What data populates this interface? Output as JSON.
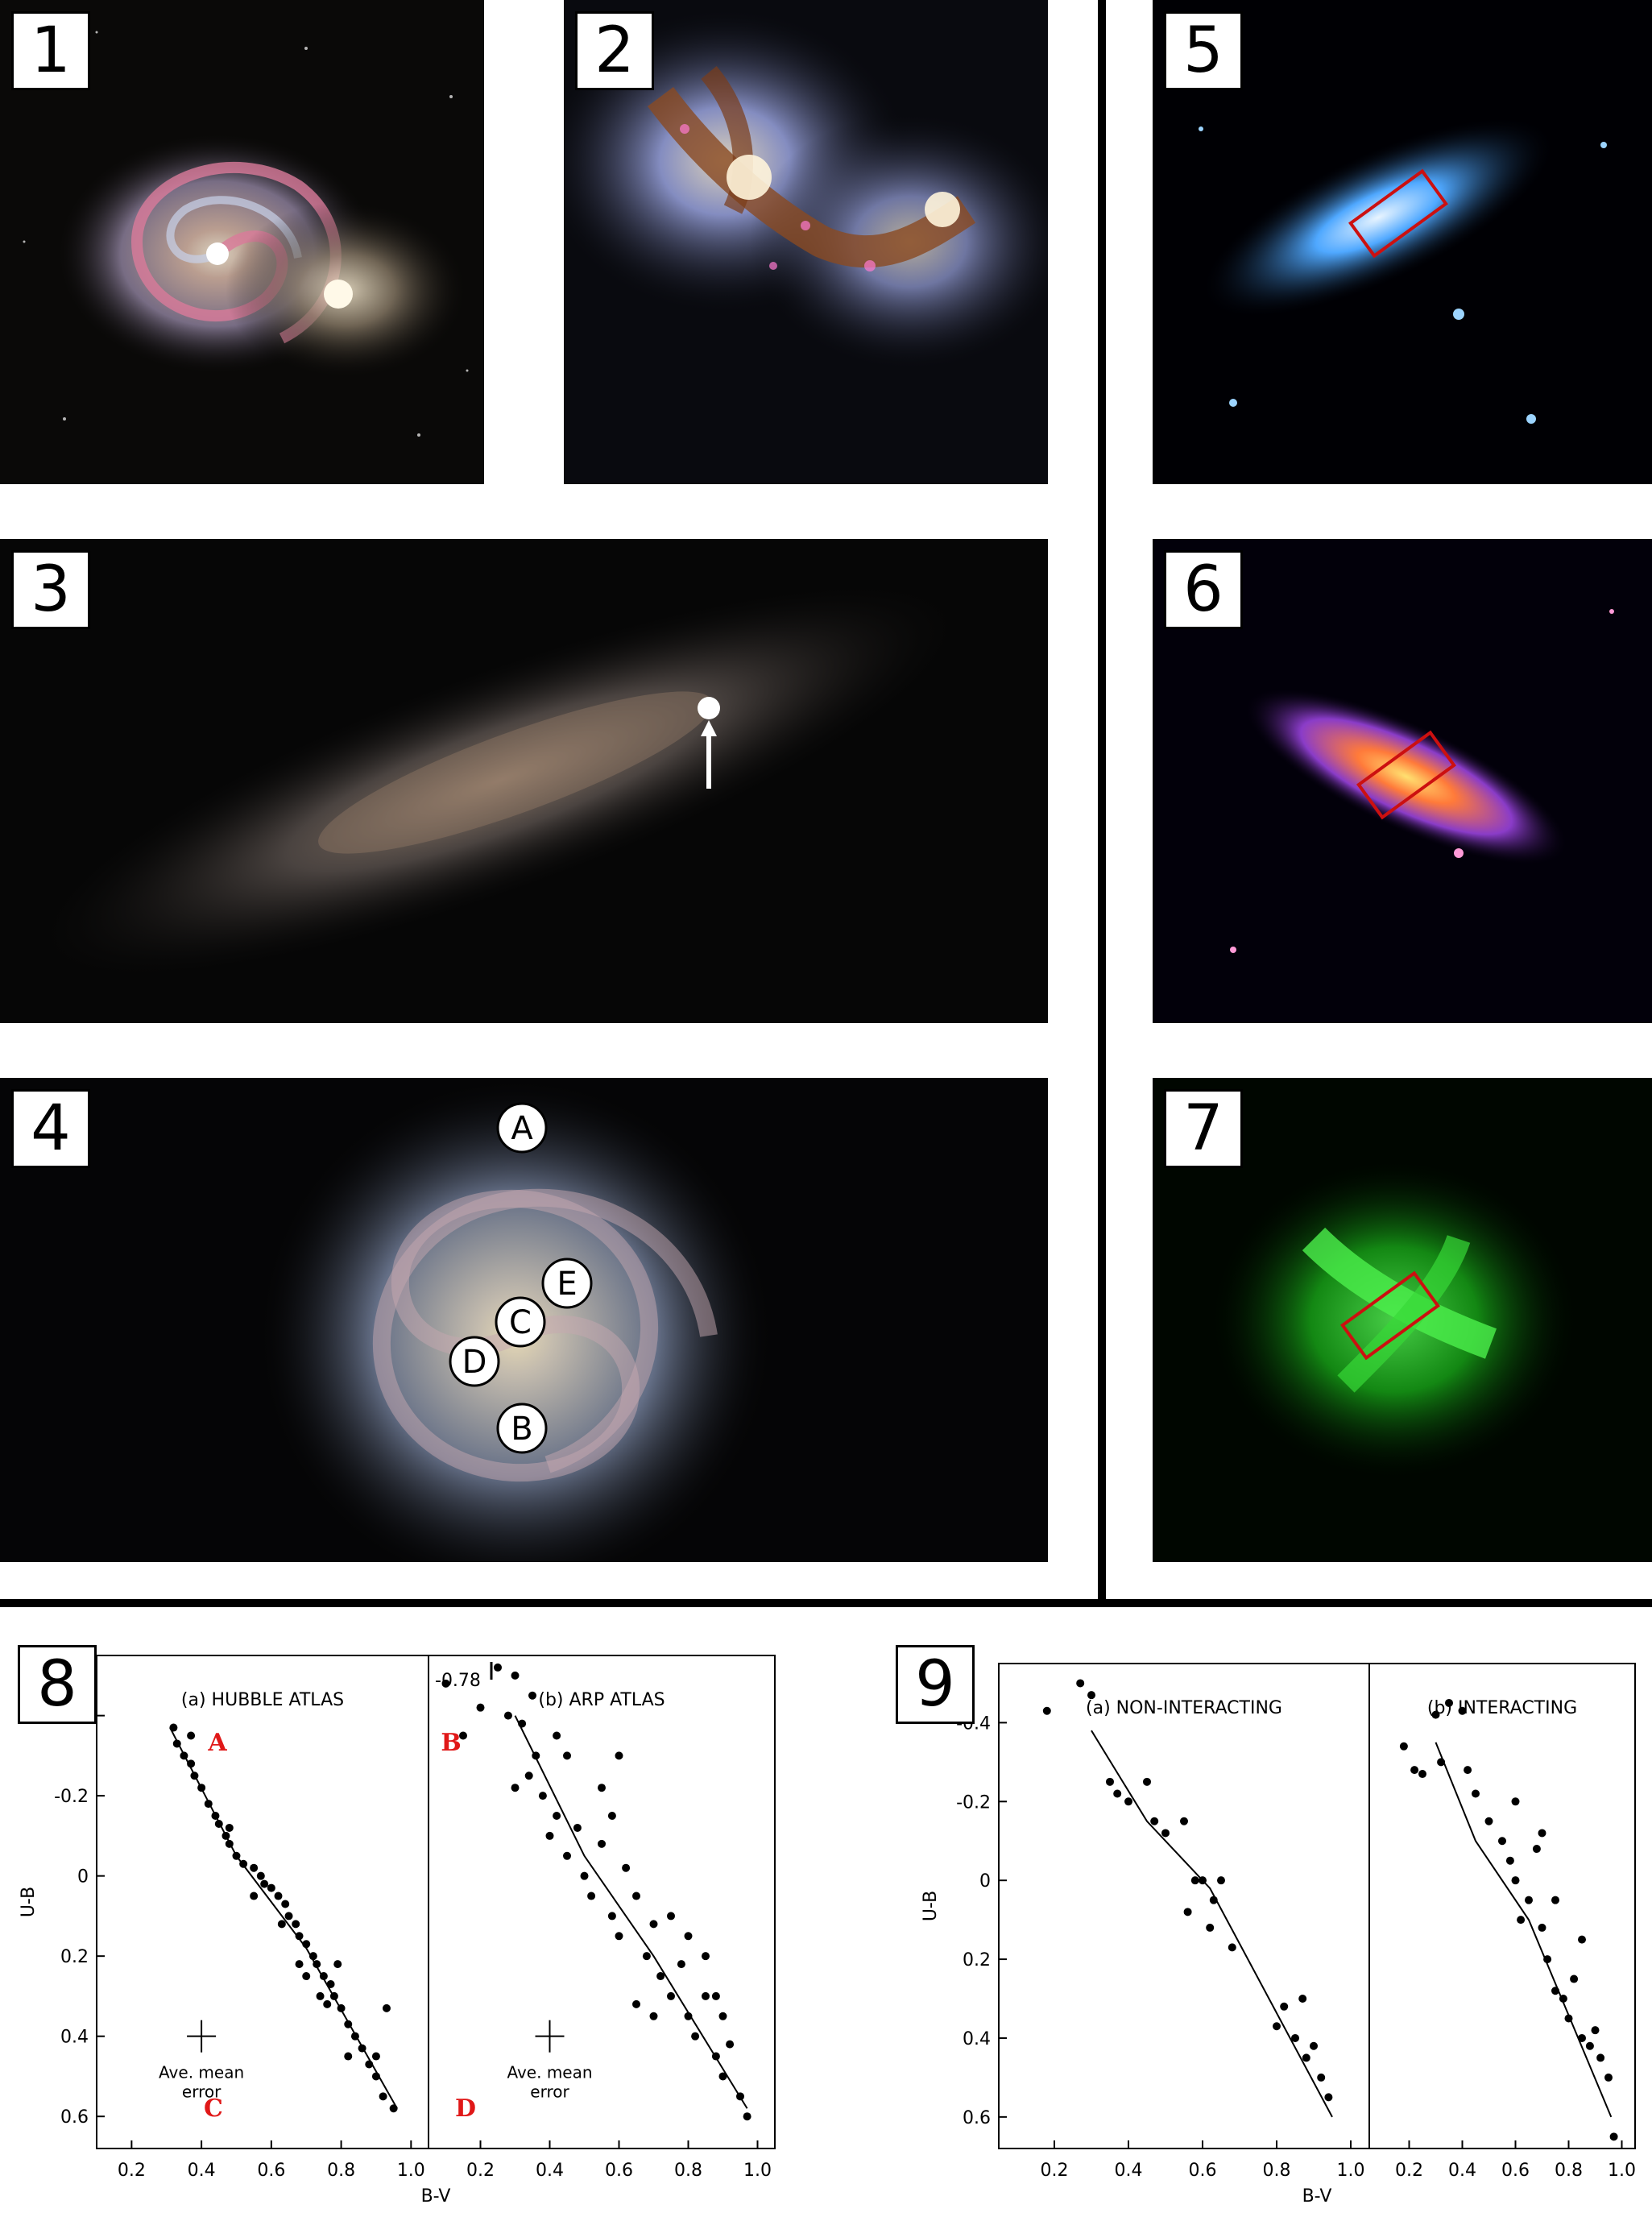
{
  "panels": [
    {
      "number": "1"
    },
    {
      "number": "2"
    },
    {
      "number": "3"
    },
    {
      "number": "4",
      "markers": [
        "A",
        "E",
        "C",
        "D",
        "B"
      ]
    },
    {
      "number": "5"
    },
    {
      "number": "6"
    },
    {
      "number": "7"
    },
    {
      "number": "8"
    },
    {
      "number": "9"
    }
  ],
  "chart_data": [
    {
      "type": "scatter",
      "panel": "8",
      "subplots": [
        {
          "title": "(a) HUBBLE ATLAS",
          "corner_labels": [
            "A",
            "B",
            "C",
            "D"
          ],
          "annotation": [
            "Ave. mean",
            "error"
          ],
          "points": [
            [
              0.32,
              -0.37
            ],
            [
              0.33,
              -0.33
            ],
            [
              0.35,
              -0.3
            ],
            [
              0.37,
              -0.28
            ],
            [
              0.38,
              -0.25
            ],
            [
              0.4,
              -0.22
            ],
            [
              0.42,
              -0.18
            ],
            [
              0.44,
              -0.15
            ],
            [
              0.45,
              -0.13
            ],
            [
              0.47,
              -0.1
            ],
            [
              0.48,
              -0.08
            ],
            [
              0.5,
              -0.05
            ],
            [
              0.52,
              -0.03
            ],
            [
              0.55,
              -0.02
            ],
            [
              0.57,
              0
            ],
            [
              0.58,
              0.02
            ],
            [
              0.6,
              0.03
            ],
            [
              0.62,
              0.05
            ],
            [
              0.64,
              0.07
            ],
            [
              0.65,
              0.1
            ],
            [
              0.67,
              0.12
            ],
            [
              0.68,
              0.15
            ],
            [
              0.7,
              0.17
            ],
            [
              0.72,
              0.2
            ],
            [
              0.73,
              0.22
            ],
            [
              0.75,
              0.25
            ],
            [
              0.77,
              0.27
            ],
            [
              0.78,
              0.3
            ],
            [
              0.8,
              0.33
            ],
            [
              0.82,
              0.37
            ],
            [
              0.84,
              0.4
            ],
            [
              0.86,
              0.43
            ],
            [
              0.88,
              0.47
            ],
            [
              0.9,
              0.5
            ],
            [
              0.92,
              0.55
            ],
            [
              0.95,
              0.58
            ],
            [
              0.37,
              -0.35
            ],
            [
              0.48,
              -0.12
            ],
            [
              0.55,
              0.05
            ],
            [
              0.63,
              0.12
            ],
            [
              0.7,
              0.25
            ],
            [
              0.74,
              0.3
            ],
            [
              0.82,
              0.45
            ],
            [
              0.9,
              0.45
            ],
            [
              0.93,
              0.33
            ],
            [
              0.68,
              0.22
            ],
            [
              0.76,
              0.32
            ],
            [
              0.79,
              0.22
            ]
          ],
          "curve": [
            [
              0.31,
              -0.37
            ],
            [
              0.5,
              -0.05
            ],
            [
              0.7,
              0.18
            ],
            [
              0.96,
              0.58
            ]
          ],
          "xlim": [
            0.1,
            1.05
          ],
          "ylim": [
            -0.55,
            0.68
          ]
        },
        {
          "title": "(b) ARP ATLAS",
          "top_label": "-0.78",
          "annotation": [
            "Ave. mean",
            "error"
          ],
          "points": [
            [
              0.1,
              -0.48
            ],
            [
              0.15,
              -0.35
            ],
            [
              0.2,
              -0.42
            ],
            [
              0.25,
              -0.52
            ],
            [
              0.28,
              -0.4
            ],
            [
              0.3,
              -0.5
            ],
            [
              0.32,
              -0.38
            ],
            [
              0.34,
              -0.25
            ],
            [
              0.36,
              -0.3
            ],
            [
              0.38,
              -0.2
            ],
            [
              0.4,
              -0.1
            ],
            [
              0.42,
              -0.15
            ],
            [
              0.45,
              -0.05
            ],
            [
              0.48,
              -0.12
            ],
            [
              0.5,
              0
            ],
            [
              0.52,
              0.05
            ],
            [
              0.55,
              -0.08
            ],
            [
              0.58,
              0.1
            ],
            [
              0.6,
              0.15
            ],
            [
              0.62,
              -0.02
            ],
            [
              0.65,
              0.05
            ],
            [
              0.68,
              0.2
            ],
            [
              0.7,
              0.12
            ],
            [
              0.72,
              0.25
            ],
            [
              0.75,
              0.3
            ],
            [
              0.78,
              0.22
            ],
            [
              0.8,
              0.35
            ],
            [
              0.82,
              0.4
            ],
            [
              0.85,
              0.3
            ],
            [
              0.88,
              0.45
            ],
            [
              0.9,
              0.5
            ],
            [
              0.92,
              0.42
            ],
            [
              0.95,
              0.55
            ],
            [
              0.97,
              0.6
            ],
            [
              0.35,
              -0.45
            ],
            [
              0.45,
              -0.3
            ],
            [
              0.55,
              -0.22
            ],
            [
              0.6,
              -0.3
            ],
            [
              0.65,
              0.32
            ],
            [
              0.7,
              0.35
            ],
            [
              0.8,
              0.15
            ],
            [
              0.85,
              0.2
            ],
            [
              0.9,
              0.35
            ],
            [
              0.3,
              -0.22
            ],
            [
              0.42,
              -0.35
            ],
            [
              0.58,
              -0.15
            ],
            [
              0.75,
              0.1
            ],
            [
              0.88,
              0.3
            ]
          ],
          "curve": [
            [
              0.3,
              -0.4
            ],
            [
              0.5,
              -0.05
            ],
            [
              0.7,
              0.2
            ],
            [
              0.97,
              0.58
            ]
          ],
          "xlim": [
            0.05,
            1.05
          ],
          "ylim": [
            -0.55,
            0.68
          ]
        }
      ],
      "xlabel": "B-V",
      "ylabel": "U-B",
      "xticks": [
        "0.2",
        "0.4",
        "0.6",
        "0.8",
        "1.0"
      ],
      "yticks": [
        "-0.4",
        "-0.2",
        "0",
        "0.2",
        "0.4",
        "0.6"
      ]
    },
    {
      "type": "scatter",
      "panel": "9",
      "subplots": [
        {
          "title": "(a) NON-INTERACTING",
          "points": [
            [
              0.18,
              -0.43
            ],
            [
              0.27,
              -0.5
            ],
            [
              0.3,
              -0.47
            ],
            [
              0.35,
              -0.25
            ],
            [
              0.37,
              -0.22
            ],
            [
              0.4,
              -0.2
            ],
            [
              0.45,
              -0.25
            ],
            [
              0.47,
              -0.15
            ],
            [
              0.5,
              -0.12
            ],
            [
              0.55,
              -0.15
            ],
            [
              0.56,
              0.08
            ],
            [
              0.58,
              0
            ],
            [
              0.6,
              0
            ],
            [
              0.62,
              0.12
            ],
            [
              0.63,
              0.05
            ],
            [
              0.65,
              0
            ],
            [
              0.68,
              0.17
            ],
            [
              0.8,
              0.37
            ],
            [
              0.82,
              0.32
            ],
            [
              0.85,
              0.4
            ],
            [
              0.87,
              0.3
            ],
            [
              0.88,
              0.45
            ],
            [
              0.9,
              0.42
            ],
            [
              0.92,
              0.5
            ],
            [
              0.94,
              0.55
            ]
          ],
          "curve": [
            [
              0.3,
              -0.38
            ],
            [
              0.45,
              -0.15
            ],
            [
              0.62,
              0.02
            ],
            [
              0.95,
              0.6
            ]
          ],
          "xlim": [
            0.05,
            1.05
          ],
          "ylim": [
            -0.55,
            0.68
          ]
        },
        {
          "title": "(b) INTERACTING",
          "points": [
            [
              0.18,
              -0.34
            ],
            [
              0.22,
              -0.28
            ],
            [
              0.25,
              -0.27
            ],
            [
              0.3,
              -0.42
            ],
            [
              0.32,
              -0.3
            ],
            [
              0.35,
              -0.45
            ],
            [
              0.4,
              -0.43
            ],
            [
              0.42,
              -0.28
            ],
            [
              0.45,
              -0.22
            ],
            [
              0.5,
              -0.15
            ],
            [
              0.55,
              -0.1
            ],
            [
              0.58,
              -0.05
            ],
            [
              0.6,
              0
            ],
            [
              0.62,
              0.1
            ],
            [
              0.65,
              0.05
            ],
            [
              0.68,
              -0.08
            ],
            [
              0.7,
              0.12
            ],
            [
              0.72,
              0.2
            ],
            [
              0.75,
              0.28
            ],
            [
              0.78,
              0.3
            ],
            [
              0.8,
              0.35
            ],
            [
              0.82,
              0.25
            ],
            [
              0.85,
              0.4
            ],
            [
              0.88,
              0.42
            ],
            [
              0.9,
              0.38
            ],
            [
              0.92,
              0.45
            ],
            [
              0.95,
              0.5
            ],
            [
              0.97,
              0.65
            ],
            [
              0.6,
              -0.2
            ],
            [
              0.7,
              -0.12
            ],
            [
              0.75,
              0.05
            ],
            [
              0.85,
              0.15
            ]
          ],
          "curve": [
            [
              0.3,
              -0.35
            ],
            [
              0.45,
              -0.1
            ],
            [
              0.65,
              0.1
            ],
            [
              0.96,
              0.6
            ]
          ],
          "xlim": [
            0.05,
            1.05
          ],
          "ylim": [
            -0.55,
            0.68
          ]
        }
      ],
      "xlabel": "B-V",
      "ylabel": "U-B",
      "xticks": [
        "0.2",
        "0.4",
        "0.6",
        "0.8",
        "1.0"
      ],
      "yticks": [
        "-0.4",
        "-0.2",
        "0",
        "0.2",
        "0.4",
        "0.6"
      ]
    }
  ]
}
